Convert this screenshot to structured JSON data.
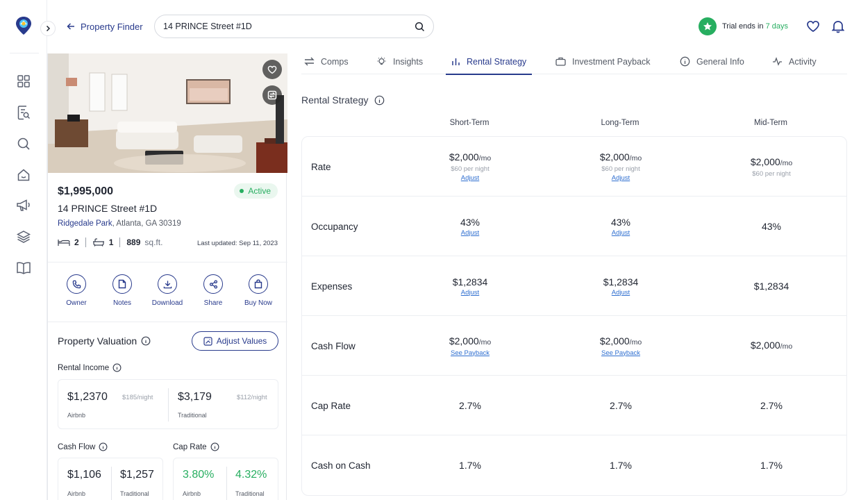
{
  "app": {
    "back_label": "Property Finder",
    "search_value": "14 PRINCE Street #1D",
    "trial_prefix": "Trial ends in",
    "trial_days": "7 days",
    "accent": "#283a8c",
    "positive": "#27ae60"
  },
  "sidebar": {
    "icons": [
      "dashboard-grid-icon",
      "document-search-icon",
      "search-icon",
      "home-icon",
      "megaphone-icon",
      "layers-icon",
      "book-icon"
    ]
  },
  "property": {
    "price": "$1,995,000",
    "status": "Active",
    "address": "14 PRINCE Street #1D",
    "neighborhood": "Ridgedale Park",
    "city_line": ", Atlanta, GA 30319",
    "beds": "2",
    "baths": "1",
    "sqft": "889",
    "sqft_unit": "sq.ft.",
    "updated": "Last updated: Sep 11, 2023",
    "actions": [
      "Owner",
      "Notes",
      "Download",
      "Share",
      "Buy Now"
    ]
  },
  "valuation": {
    "title": "Property Valuation",
    "adjust_label": "Adjust Values",
    "rental_income": {
      "title": "Rental Income",
      "airbnb_value": "$1,2370",
      "airbnb_night": "$185/night",
      "airbnb_label": "Airbnb",
      "traditional_value": "$3,179",
      "traditional_night": "$112/night",
      "traditional_label": "Traditional"
    },
    "cash_flow": {
      "title": "Cash Flow",
      "airbnb_value": "$1,106",
      "airbnb_label": "Airbnb",
      "traditional_value": "$1,257",
      "traditional_label": "Traditional"
    },
    "cap_rate": {
      "title": "Cap Rate",
      "airbnb_value": "3.80%",
      "airbnb_label": "Airbnb",
      "traditional_value": "4.32%",
      "traditional_label": "Traditional"
    }
  },
  "tabs": [
    "Comps",
    "Insights",
    "Rental Strategy",
    "Investment Payback",
    "General Info",
    "Activity"
  ],
  "active_tab": "Rental Strategy",
  "strategy": {
    "title": "Rental Strategy",
    "columns": [
      "Short-Term",
      "Long-Term",
      "Mid-Term"
    ],
    "rows": {
      "rate": {
        "label": "Rate",
        "short": {
          "value": "$2,000",
          "suffix": "/mo",
          "note": "$60 per night",
          "link": "Adjust"
        },
        "long": {
          "value": "$2,000",
          "suffix": "/mo",
          "note": "$60 per night",
          "link": "Adjust"
        },
        "mid": {
          "value": "$2,000",
          "suffix": "/mo",
          "note": "$60 per night"
        }
      },
      "occupancy": {
        "label": "Occupancy",
        "short": {
          "value": "43%",
          "link": "Adjust"
        },
        "long": {
          "value": "43%",
          "link": "Adjust"
        },
        "mid": {
          "value": "43%"
        }
      },
      "expenses": {
        "label": "Expenses",
        "short": {
          "value": "$1,2834",
          "link": "Adjust"
        },
        "long": {
          "value": "$1,2834",
          "link": "Adjust"
        },
        "mid": {
          "value": "$1,2834"
        }
      },
      "cash_flow": {
        "label": "Cash Flow",
        "short": {
          "value": "$2,000",
          "suffix": "/mo",
          "link": "See Payback"
        },
        "long": {
          "value": "$2,000",
          "suffix": "/mo",
          "link": "See Payback"
        },
        "mid": {
          "value": "$2,000",
          "suffix": "/mo"
        }
      },
      "cap_rate": {
        "label": "Cap Rate",
        "short": {
          "value": "2.7%"
        },
        "long": {
          "value": "2.7%"
        },
        "mid": {
          "value": "2.7%"
        }
      },
      "cash_on_cash": {
        "label": "Cash on Cash",
        "short": {
          "value": "1.7%"
        },
        "long": {
          "value": "1.7%"
        },
        "mid": {
          "value": "1.7%"
        }
      }
    }
  }
}
